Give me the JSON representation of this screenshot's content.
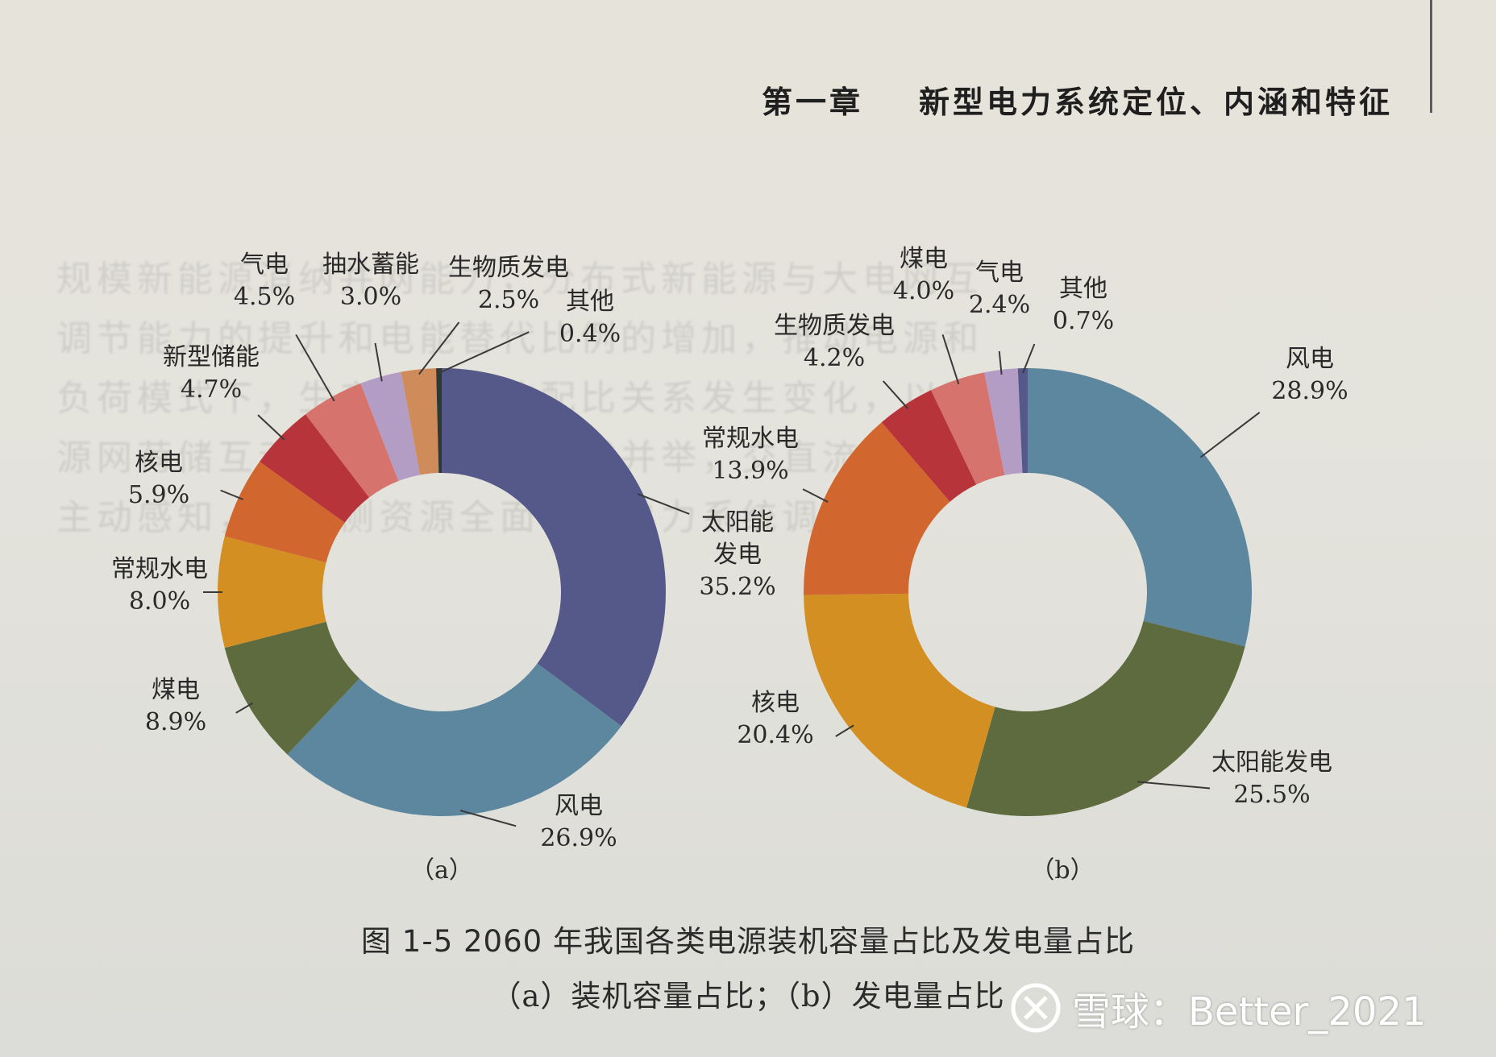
{
  "header": {
    "chapter": "第一章",
    "title": "新型电力系统定位、内涵和特征"
  },
  "background_text": [
    "规模新能源消纳并网能力，分布式新能源与大电网互",
    "调节能力的提升和电能替代比例的增加，推动电源和",
    "负荷模式下，生产和消费的配比关系发生变化，以及",
    "源网荷储互动，分布式和集中式并举，交直流协同",
    "主动感知，用户侧资源全面参与电力系统调节"
  ],
  "figure": {
    "number": "图 1-5",
    "title": "2060 年我国各类电源装机容量占比及发电量占比",
    "subtitle": "（a）装机容量占比；（b）发电量占比"
  },
  "watermark": {
    "text": "雪球：Better_2021",
    "icon": "xueqiu-logo-icon"
  },
  "chart_data": [
    {
      "type": "pie",
      "subtype": "donut",
      "panel_label": "（a）",
      "title": "装机容量占比",
      "unit": "%",
      "start_angle_deg": 0,
      "direction": "clockwise",
      "slices": [
        {
          "name": "太阳能发电",
          "label_lines": [
            "太阳能",
            "发电"
          ],
          "value": 35.2,
          "value_label": "35.2%",
          "color": "#545989"
        },
        {
          "name": "风电",
          "label_lines": [
            "风电"
          ],
          "value": 26.9,
          "value_label": "26.9%",
          "color": "#5d869f"
        },
        {
          "name": "煤电",
          "label_lines": [
            "煤电"
          ],
          "value": 8.9,
          "value_label": "8.9%",
          "color": "#5e6b3e"
        },
        {
          "name": "常规水电",
          "label_lines": [
            "常规水电"
          ],
          "value": 8.0,
          "value_label": "8.0%",
          "color": "#d48f23"
        },
        {
          "name": "核电",
          "label_lines": [
            "核电"
          ],
          "value": 5.9,
          "value_label": "5.9%",
          "color": "#d2662f"
        },
        {
          "name": "新型储能",
          "label_lines": [
            "新型储能"
          ],
          "value": 4.7,
          "value_label": "4.7%",
          "color": "#b7343a"
        },
        {
          "name": "气电",
          "label_lines": [
            "气电"
          ],
          "value": 4.5,
          "value_label": "4.5%",
          "color": "#d6736c"
        },
        {
          "name": "抽水蓄能",
          "label_lines": [
            "抽水蓄能"
          ],
          "value": 3.0,
          "value_label": "3.0%",
          "color": "#b39dc4"
        },
        {
          "name": "生物质发电",
          "label_lines": [
            "生物质发电"
          ],
          "value": 2.5,
          "value_label": "2.5%",
          "color": "#cf8c5a"
        },
        {
          "name": "其他",
          "label_lines": [
            "其他"
          ],
          "value": 0.4,
          "value_label": "0.4%",
          "color": "#2e3a30"
        }
      ]
    },
    {
      "type": "pie",
      "subtype": "donut",
      "panel_label": "（b）",
      "title": "发电量占比",
      "unit": "%",
      "start_angle_deg": 0,
      "direction": "clockwise",
      "slices": [
        {
          "name": "风电",
          "label_lines": [
            "风电"
          ],
          "value": 28.9,
          "value_label": "28.9%",
          "color": "#5d869f"
        },
        {
          "name": "太阳能发电",
          "label_lines": [
            "太阳能发电"
          ],
          "value": 25.5,
          "value_label": "25.5%",
          "color": "#5e6b3e"
        },
        {
          "name": "核电",
          "label_lines": [
            "核电"
          ],
          "value": 20.4,
          "value_label": "20.4%",
          "color": "#d48f23"
        },
        {
          "name": "常规水电",
          "label_lines": [
            "常规水电"
          ],
          "value": 13.9,
          "value_label": "13.9%",
          "color": "#d2662f"
        },
        {
          "name": "生物质发电",
          "label_lines": [
            "生物质发电"
          ],
          "value": 4.2,
          "value_label": "4.2%",
          "color": "#b7343a"
        },
        {
          "name": "煤电",
          "label_lines": [
            "煤电"
          ],
          "value": 4.0,
          "value_label": "4.0%",
          "color": "#d6736c"
        },
        {
          "name": "气电",
          "label_lines": [
            "气电"
          ],
          "value": 2.4,
          "value_label": "2.4%",
          "color": "#b39dc4"
        },
        {
          "name": "其他",
          "label_lines": [
            "其他"
          ],
          "value": 0.7,
          "value_label": "0.7%",
          "color": "#545989"
        }
      ]
    }
  ]
}
